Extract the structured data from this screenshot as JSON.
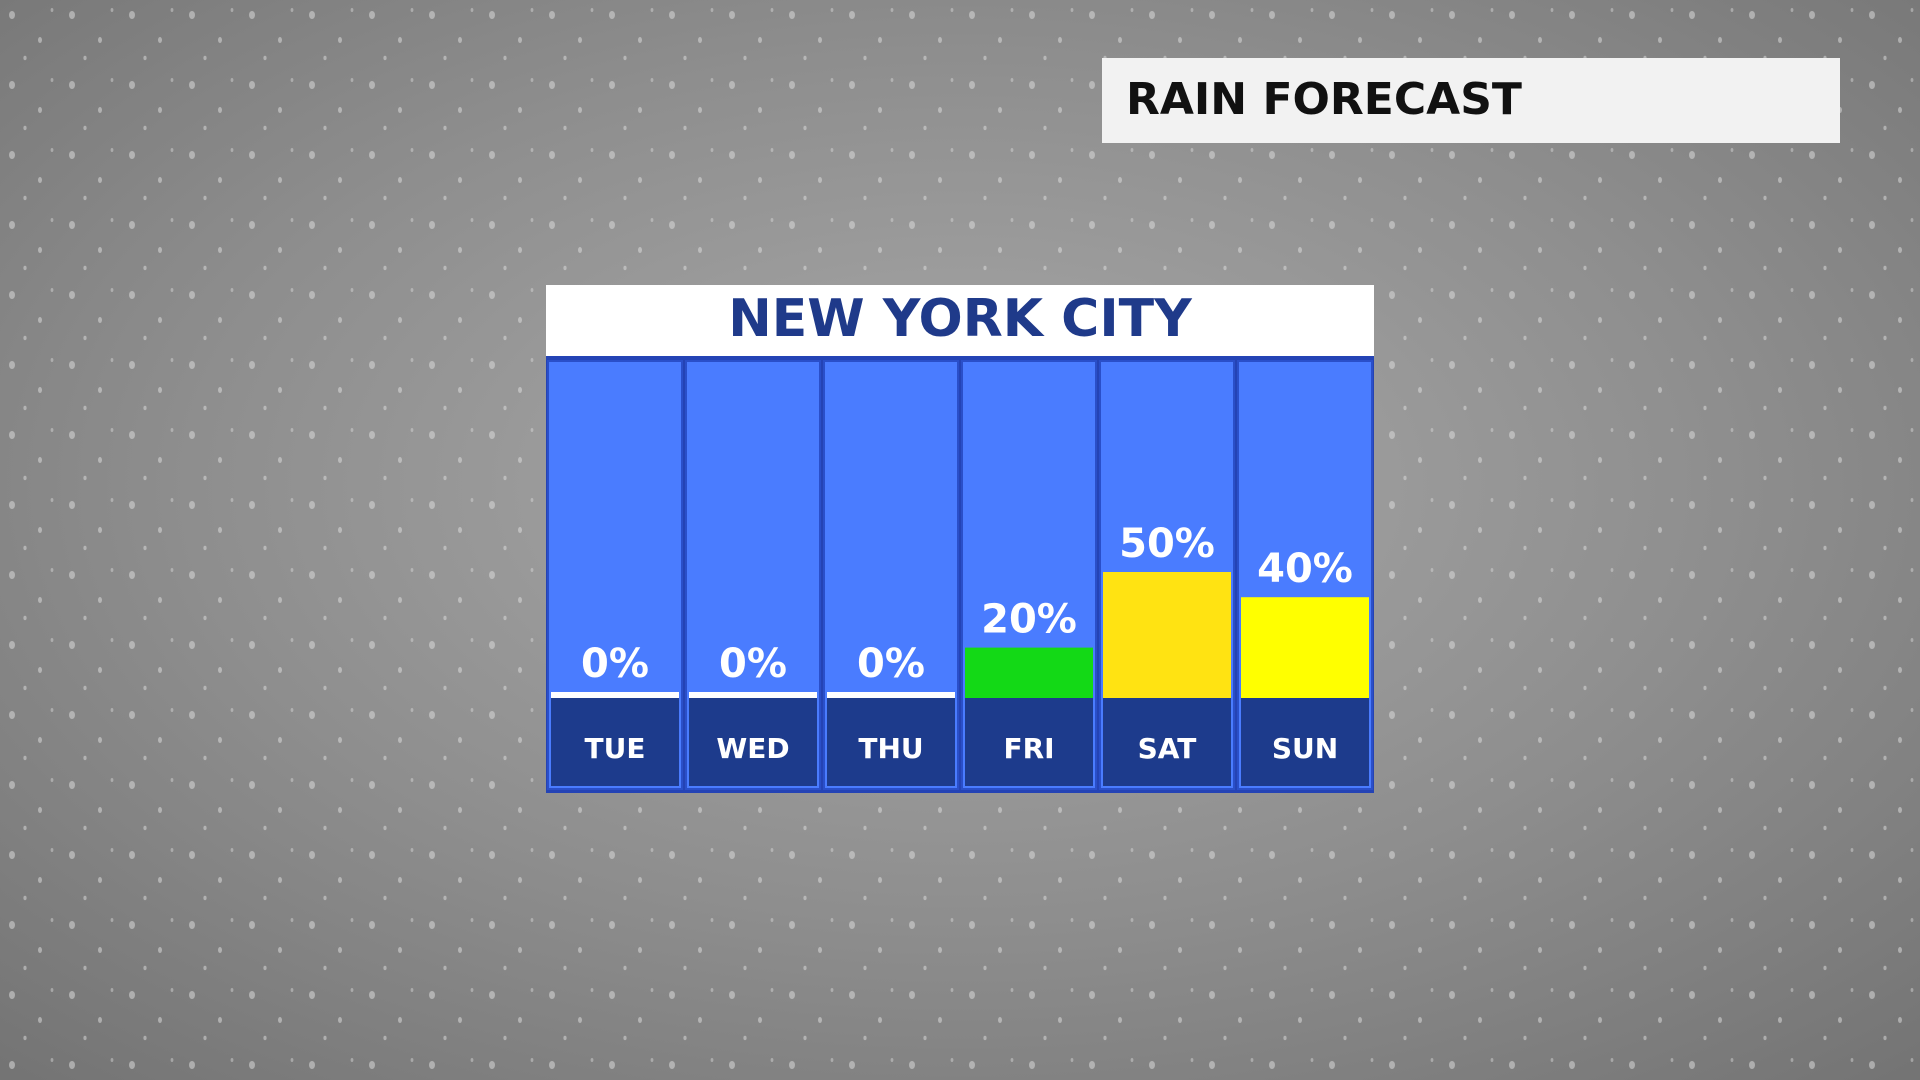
{
  "header": {
    "title": "RAIN FORECAST"
  },
  "chart_data": {
    "type": "bar",
    "title": "NEW YORK CITY",
    "categories": [
      "TUE",
      "WED",
      "THU",
      "FRI",
      "SAT",
      "SUN"
    ],
    "values": [
      0,
      0,
      0,
      20,
      50,
      40
    ],
    "value_labels": [
      "0%",
      "0%",
      "0%",
      "20%",
      "50%",
      "40%"
    ],
    "colors": [
      "#ffffff",
      "#ffffff",
      "#ffffff",
      "#13d916",
      "#ffe312",
      "#ffff00"
    ]
  }
}
